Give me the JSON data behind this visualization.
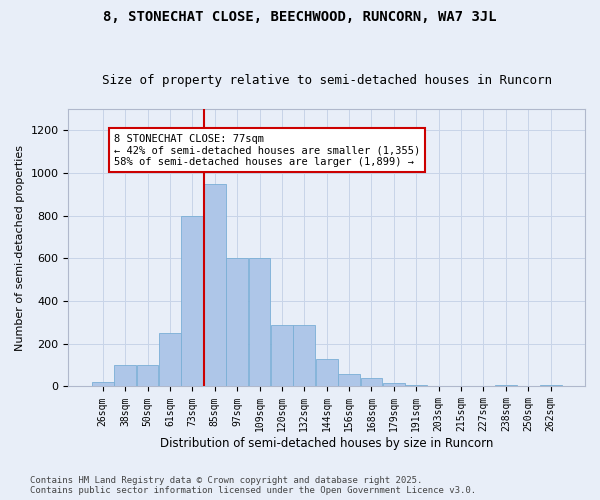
{
  "title": "8, STONECHAT CLOSE, BEECHWOOD, RUNCORN, WA7 3JL",
  "subtitle": "Size of property relative to semi-detached houses in Runcorn",
  "xlabel": "Distribution of semi-detached houses by size in Runcorn",
  "ylabel": "Number of semi-detached properties",
  "bin_labels": [
    "26sqm",
    "38sqm",
    "50sqm",
    "61sqm",
    "73sqm",
    "85sqm",
    "97sqm",
    "109sqm",
    "120sqm",
    "132sqm",
    "144sqm",
    "156sqm",
    "168sqm",
    "179sqm",
    "191sqm",
    "203sqm",
    "215sqm",
    "227sqm",
    "238sqm",
    "250sqm",
    "262sqm"
  ],
  "bar_heights": [
    20,
    100,
    100,
    250,
    800,
    950,
    600,
    600,
    290,
    290,
    130,
    60,
    40,
    15,
    5,
    3,
    2,
    2,
    5,
    2,
    5
  ],
  "bar_color": "#aec6e8",
  "bar_edge_color": "#7aafd6",
  "grid_color": "#c8d4e8",
  "background_color": "#e8eef8",
  "vline_color": "#cc0000",
  "annotation_title": "8 STONECHAT CLOSE: 77sqm",
  "annotation_line1": "← 42% of semi-detached houses are smaller (1,355)",
  "annotation_line2": "58% of semi-detached houses are larger (1,899) →",
  "annotation_box_color": "#ffffff",
  "annotation_box_edge": "#cc0000",
  "footer1": "Contains HM Land Registry data © Crown copyright and database right 2025.",
  "footer2": "Contains public sector information licensed under the Open Government Licence v3.0.",
  "ylim": [
    0,
    1300
  ],
  "yticks": [
    0,
    200,
    400,
    600,
    800,
    1000,
    1200
  ],
  "title_fontsize": 10,
  "subtitle_fontsize": 9
}
